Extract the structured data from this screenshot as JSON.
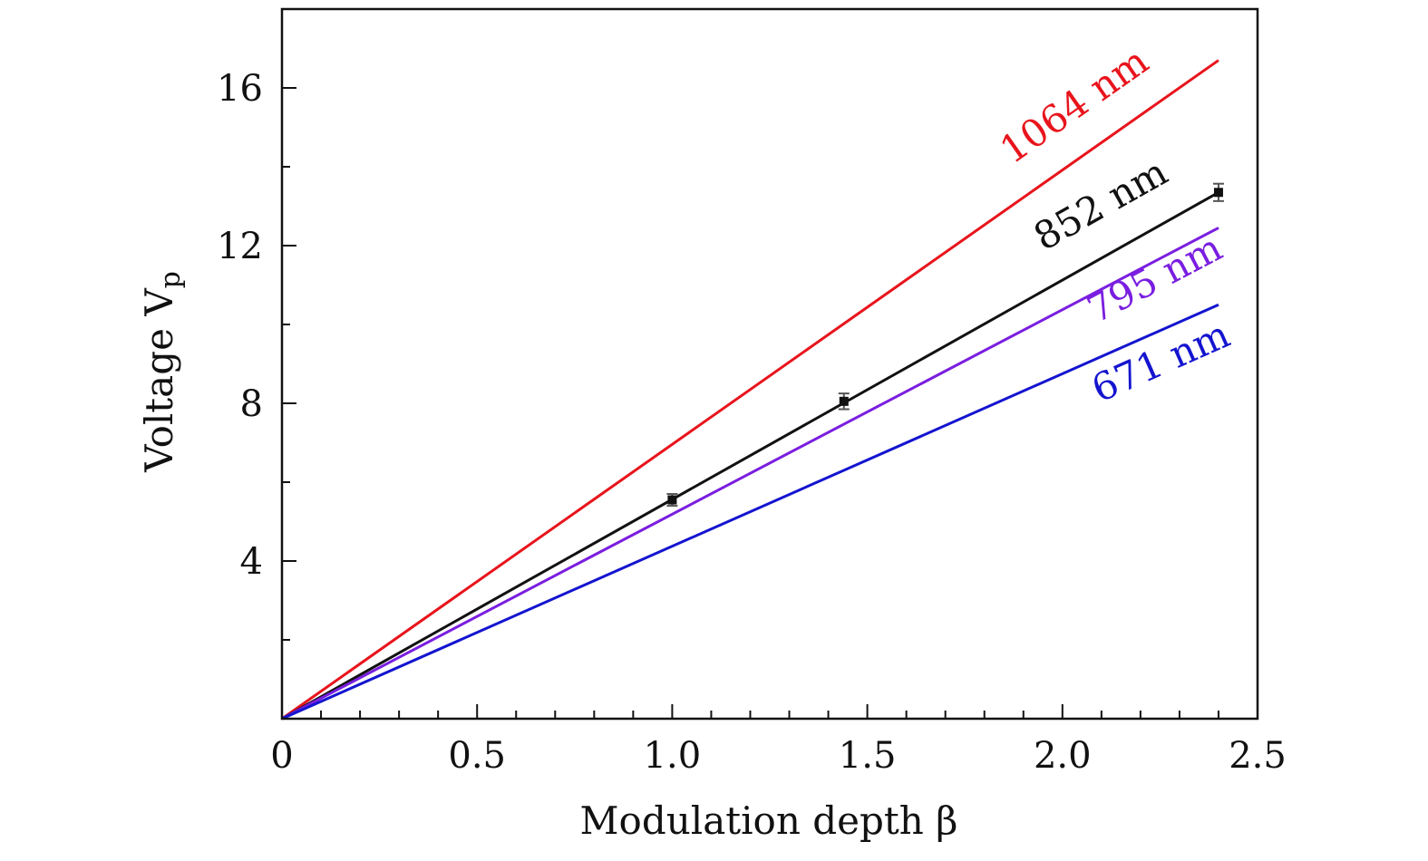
{
  "chart_data": {
    "type": "line",
    "xlabel": "Modulation depth β",
    "ylabel_main": "Voltage V",
    "ylabel_sub": "p",
    "xlim": [
      0,
      2.5
    ],
    "ylim": [
      0,
      18
    ],
    "x_ticks": [
      {
        "value": 0,
        "label": "0"
      },
      {
        "value": 0.5,
        "label": "0.5"
      },
      {
        "value": 1.0,
        "label": "1.0"
      },
      {
        "value": 1.5,
        "label": "1.5"
      },
      {
        "value": 2.0,
        "label": "2.0"
      },
      {
        "value": 2.5,
        "label": "2.5"
      }
    ],
    "x_minor_ticks": [
      0.1,
      0.2,
      0.3,
      0.4,
      0.6,
      0.7,
      0.8,
      0.9,
      1.1,
      1.2,
      1.3,
      1.4,
      1.6,
      1.7,
      1.8,
      1.9,
      2.1,
      2.2,
      2.3,
      2.4
    ],
    "y_ticks": [
      {
        "value": 4,
        "label": "4"
      },
      {
        "value": 8,
        "label": "8"
      },
      {
        "value": 12,
        "label": "12"
      },
      {
        "value": 16,
        "label": "16"
      }
    ],
    "y_minor_ticks": [
      2,
      6,
      10,
      14
    ],
    "grid": false,
    "series": [
      {
        "name": "1064 nm",
        "color": "#e8141c",
        "x": [
          0,
          2.4
        ],
        "y": [
          0,
          16.7
        ]
      },
      {
        "name": "852 nm",
        "color": "#111111",
        "x": [
          0,
          2.4
        ],
        "y": [
          0,
          13.35
        ]
      },
      {
        "name": "795 nm",
        "color": "#7a1ee0",
        "x": [
          0,
          2.4
        ],
        "y": [
          0,
          12.45
        ]
      },
      {
        "name": "671 nm",
        "color": "#1414d0",
        "x": [
          0,
          2.4
        ],
        "y": [
          0,
          10.5
        ]
      }
    ],
    "measured_points": {
      "color": "#111111",
      "points": [
        {
          "x": 1.0,
          "y": 5.55,
          "err": 0.15
        },
        {
          "x": 1.44,
          "y": 8.05,
          "err": 0.2
        },
        {
          "x": 2.4,
          "y": 13.35,
          "err": 0.22
        }
      ]
    }
  }
}
